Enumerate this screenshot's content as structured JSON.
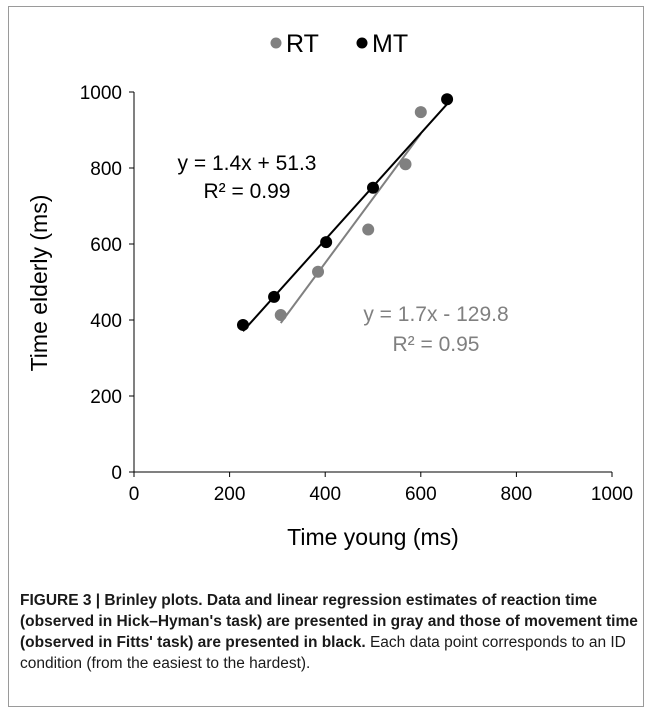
{
  "chart_data": {
    "type": "scatter",
    "legend": {
      "placement": "top-center",
      "entries": [
        "RT",
        "MT"
      ]
    },
    "xlabel": "Time young (ms)",
    "ylabel": "Time elderly (ms)",
    "xlim": [
      0,
      1000
    ],
    "ylim": [
      0,
      1000
    ],
    "xticks": [
      "0",
      "200",
      "400",
      "600",
      "800",
      "1000"
    ],
    "yticks": [
      "0",
      "200",
      "400",
      "600",
      "800",
      "1000"
    ],
    "grid": false,
    "series": [
      {
        "name": "RT",
        "color": "#808080",
        "points": [
          [
            307,
            413
          ],
          [
            385,
            527
          ],
          [
            490,
            638
          ],
          [
            568,
            810
          ],
          [
            600,
            947
          ]
        ],
        "trendline": {
          "slope": 1.7,
          "intercept": -129.8,
          "x_range": [
            307,
            600
          ]
        },
        "equation": "y = 1.7x - 129.8",
        "r2": "R² = 0.95"
      },
      {
        "name": "MT",
        "color": "#000000",
        "points": [
          [
            228,
            387
          ],
          [
            293,
            461
          ],
          [
            402,
            605
          ],
          [
            500,
            748
          ],
          [
            655,
            981
          ]
        ],
        "trendline": {
          "slope": 1.4,
          "intercept": 51.3,
          "x_range": [
            228,
            655
          ]
        },
        "equation": "y = 1.4x + 51.3",
        "r2": "R² = 0.99"
      }
    ]
  },
  "caption": {
    "lead": "FIGURE 3 | Brinley plots. Data and linear regression estimates of reaction time (observed in Hick–Hyman's task) are presented in gray and those of movement time (observed in Fitts' task) are presented in black.",
    "body": " Each data point corresponds to an ID condition (from the easiest to the hardest)."
  }
}
